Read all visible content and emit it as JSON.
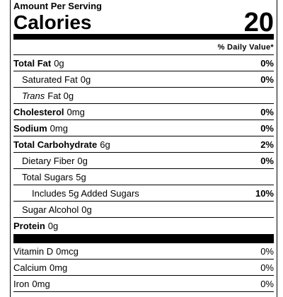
{
  "header": {
    "amount_per_serving": "Amount Per Serving",
    "calories_label": "Calories",
    "calories": 20,
    "daily_value_heading": "% Daily Value*"
  },
  "nutrients": [
    {
      "name": "Total Fat",
      "amount": "0g",
      "daily_value": "0%",
      "level": 0
    },
    {
      "name": "Saturated Fat",
      "amount": "0g",
      "daily_value": "0%",
      "level": 1
    },
    {
      "name": "Trans",
      "italic": true,
      "amount": "Fat 0g",
      "level": 1
    },
    {
      "name": "Cholesterol",
      "amount": "0mg",
      "daily_value": "0%",
      "level": 0
    },
    {
      "name": "Sodium",
      "amount": "0mg",
      "daily_value": "0%",
      "level": 0
    },
    {
      "name": "Total Carbohydrate",
      "amount": "6g",
      "daily_value": "2%",
      "level": 0
    },
    {
      "name": "Dietary Fiber",
      "amount": "0g",
      "daily_value": "0%",
      "level": 1
    },
    {
      "name": "Total Sugars",
      "amount": "5g",
      "level": 1
    },
    {
      "name": "Includes 5g Added Sugars",
      "daily_value": "10%",
      "level": 2
    },
    {
      "name": "Sugar Alcohol",
      "amount": "0g",
      "level": 1
    },
    {
      "name": "Protein",
      "amount": "0g",
      "level": 0
    }
  ],
  "vitamins": [
    {
      "name": "Vitamin D",
      "amount": "0mcg",
      "daily_value": "0%"
    },
    {
      "name": "Calcium",
      "amount": "0mg",
      "daily_value": "0%"
    },
    {
      "name": "Iron",
      "amount": "0mg",
      "daily_value": "0%"
    }
  ]
}
